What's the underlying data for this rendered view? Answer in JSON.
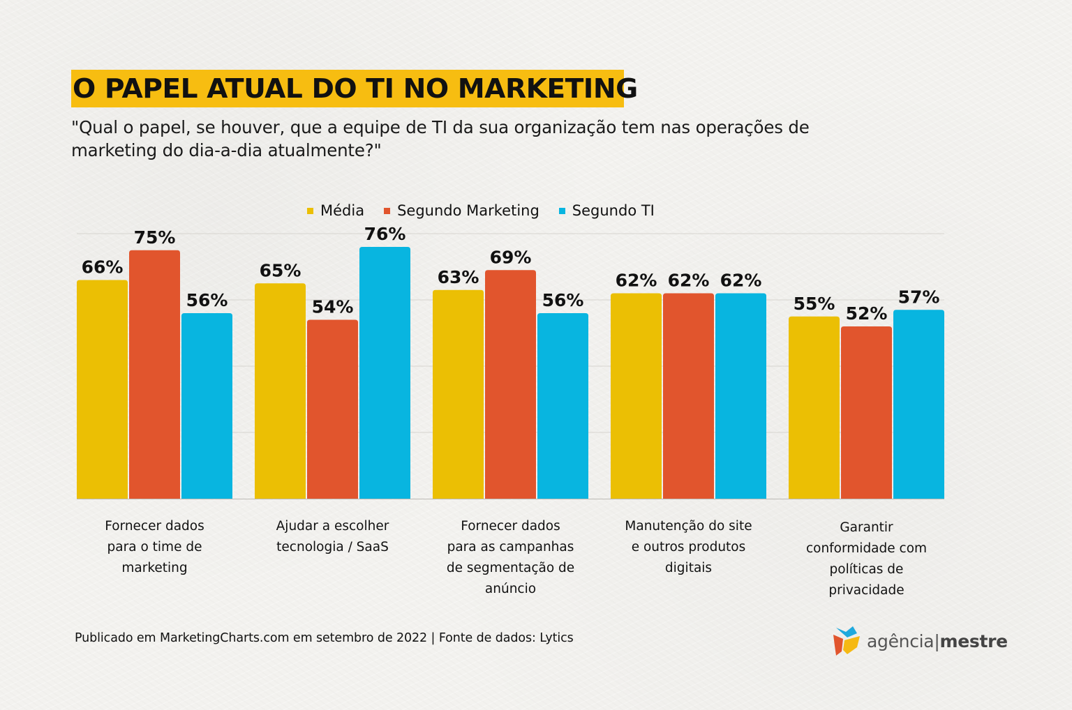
{
  "header": {
    "title": "O PAPEL ATUAL DO TI NO MARKETING",
    "subtitle": "\"Qual o papel, se houver, que a equipe de TI da sua organização tem nas operações de marketing do dia-a-dia atualmente?\""
  },
  "colors": {
    "title_highlight": "#f7bd11",
    "media": "#ebbf04",
    "marketing": "#e1552d",
    "ti": "#08b5e0"
  },
  "footer": {
    "source": "Publicado em MarketingCharts.com em setembro de 2022 | Fonte de dados: Lytics"
  },
  "logo": {
    "icon": "agencia-mestre-logo-icon",
    "name_light": "agência",
    "separator": "|",
    "name_bold": "mestre"
  },
  "chart_data": {
    "type": "bar",
    "title": "O PAPEL ATUAL DO TI NO MARKETING",
    "xlabel": "",
    "ylabel": "",
    "ylim": [
      0,
      80
    ],
    "grid": true,
    "legend_position": "top-center",
    "value_suffix": "%",
    "categories": [
      "Fornecer dados para o time de marketing",
      "Ajudar a escolher tecnologia / SaaS",
      "Fornecer dados para as campanhas de segmentação de anúncio",
      "Manutenção do site e outros produtos digitais",
      "Garantir conformidade com políticas de privacidade"
    ],
    "category_lines": [
      [
        "Fornecer dados",
        "para o time de",
        "marketing"
      ],
      [
        "Ajudar a escolher",
        "tecnologia / SaaS"
      ],
      [
        "Fornecer dados",
        "para as campanhas",
        "de segmentação de",
        "anúncio"
      ],
      [
        "Manutenção do site",
        "e outros produtos",
        "digitais"
      ],
      [
        "Garantir",
        "conformidade com",
        "políticas de",
        "privacidade"
      ]
    ],
    "series": [
      {
        "name": "Média",
        "color": "#ebbf04",
        "values": [
          66,
          65,
          63,
          62,
          55
        ]
      },
      {
        "name": "Segundo Marketing",
        "color": "#e1552d",
        "values": [
          75,
          54,
          69,
          62,
          52
        ]
      },
      {
        "name": "Segundo TI",
        "color": "#08b5e0",
        "values": [
          56,
          76,
          56,
          62,
          57
        ]
      }
    ]
  }
}
